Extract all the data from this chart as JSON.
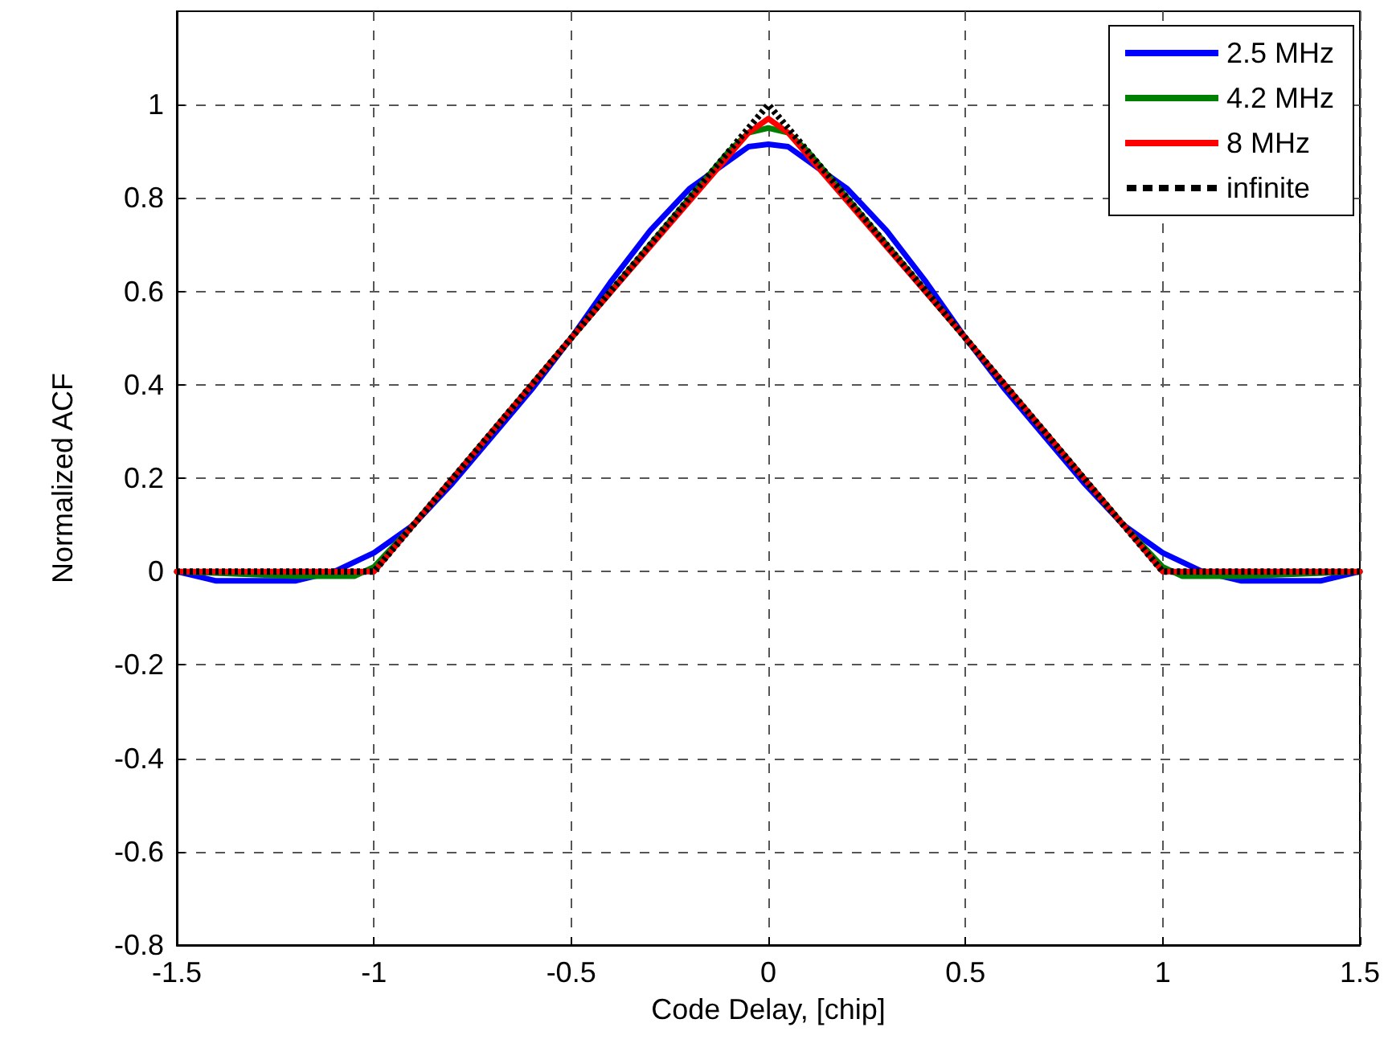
{
  "chart_data": {
    "type": "line",
    "xlabel": "Code Delay, [chip]",
    "ylabel": "Normalized ACF",
    "xlim": [
      -1.5,
      1.5
    ],
    "xticks": [
      -1.5,
      -1,
      -0.5,
      0,
      0.5,
      1,
      1.5
    ],
    "ylim": [
      -0.8,
      1.2
    ],
    "yticks": [
      -0.8,
      -0.6,
      -0.4,
      -0.2,
      0,
      0.2,
      0.4,
      0.6,
      0.8,
      1
    ],
    "grid": true,
    "legend": "top right",
    "marker": "none",
    "series": [
      {
        "name": "2.5 MHz",
        "color": "#0000ff",
        "line_style": "solid",
        "x": [
          -1.5,
          -1.4,
          -1.2,
          -1.1,
          -1.0,
          -0.9,
          -0.8,
          -0.7,
          -0.6,
          -0.5,
          -0.4,
          -0.3,
          -0.2,
          -0.1,
          -0.05,
          0,
          0.05,
          0.1,
          0.2,
          0.3,
          0.4,
          0.5,
          0.6,
          0.7,
          0.8,
          0.9,
          1.0,
          1.1,
          1.2,
          1.4,
          1.5
        ],
        "values": [
          0,
          -0.02,
          -0.02,
          0,
          0.04,
          0.1,
          0.19,
          0.29,
          0.39,
          0.5,
          0.62,
          0.73,
          0.82,
          0.88,
          0.91,
          0.915,
          0.91,
          0.88,
          0.82,
          0.73,
          0.62,
          0.5,
          0.39,
          0.29,
          0.19,
          0.1,
          0.04,
          0,
          -0.02,
          -0.02,
          0
        ]
      },
      {
        "name": "4.2 MHz",
        "color": "#008000",
        "line_style": "solid",
        "x": [
          -1.5,
          -1.2,
          -1.05,
          -1.0,
          -0.9,
          -0.5,
          -0.1,
          -0.05,
          0,
          0.05,
          0.1,
          0.5,
          0.9,
          1.0,
          1.05,
          1.2,
          1.5
        ],
        "values": [
          0,
          -0.01,
          -0.01,
          0.01,
          0.1,
          0.5,
          0.9,
          0.94,
          0.95,
          0.94,
          0.9,
          0.5,
          0.1,
          0.01,
          -0.01,
          -0.01,
          0
        ]
      },
      {
        "name": "8 MHz",
        "color": "#ff0000",
        "line_style": "solid",
        "x": [
          -1.5,
          -1.05,
          -1.0,
          -0.5,
          -0.05,
          0,
          0.05,
          0.5,
          1.0,
          1.05,
          1.5
        ],
        "values": [
          0,
          0,
          0,
          0.5,
          0.94,
          0.97,
          0.94,
          0.5,
          0,
          0,
          0
        ]
      },
      {
        "name": "infinite",
        "color": "#000000",
        "line_style": "dotted",
        "x": [
          -1.5,
          -1,
          0,
          1,
          1.5
        ],
        "values": [
          0,
          0,
          1,
          0,
          0
        ]
      }
    ]
  }
}
